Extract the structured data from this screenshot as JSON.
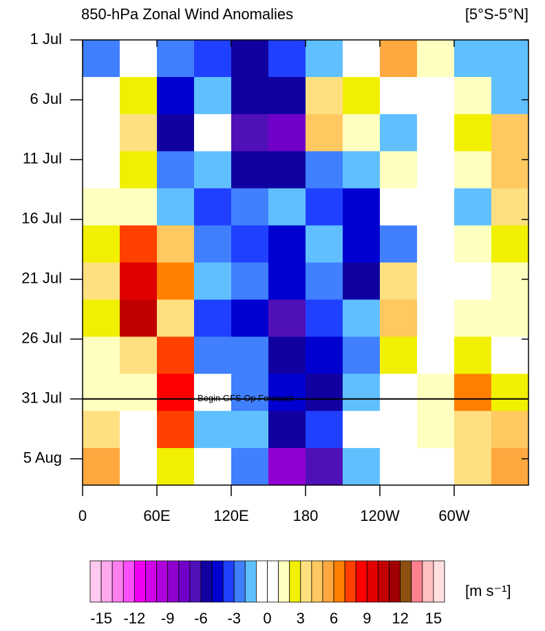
{
  "chart_data": {
    "type": "heatmap",
    "title": "850-hPa Zonal Wind Anomalies",
    "subtitle": "[5°S-5°N]",
    "xlim": [
      0,
      360
    ],
    "xticks": [
      0,
      {
        "value": 60,
        "label": "60E"
      },
      {
        "value": 120,
        "label": "120E"
      },
      180,
      {
        "value": 240,
        "label": "120W"
      },
      {
        "value": 300,
        "label": "60W"
      }
    ],
    "ylim": [
      0,
      37.2
    ],
    "yticks": [
      {
        "value": 0,
        "label": "1 Jul"
      },
      {
        "value": 5,
        "label": "6 Jul"
      },
      {
        "value": 10,
        "label": "11 Jul"
      },
      {
        "value": 15,
        "label": "16 Jul"
      },
      {
        "value": 20,
        "label": "21 Jul"
      },
      {
        "value": 25,
        "label": "26 Jul"
      },
      {
        "value": 30,
        "label": "31 Jul"
      },
      {
        "value": 35,
        "label": "5 Aug"
      }
    ],
    "x": [
      15,
      45,
      75,
      105,
      135,
      165,
      195,
      225,
      255,
      285,
      315,
      345
    ],
    "y": [
      1.55,
      4.65,
      7.75,
      10.85,
      13.95,
      17.05,
      20.15,
      23.25,
      26.35,
      29.45,
      32.55,
      35.65
    ],
    "values": [
      [
        -3,
        -1,
        -3,
        -4,
        -6,
        -4,
        -2,
        -1,
        5,
        1,
        -2,
        -2
      ],
      [
        -1,
        2,
        -5,
        -2,
        -6,
        -6,
        3,
        2,
        -1,
        -1,
        1,
        -2
      ],
      [
        -1,
        3,
        -6,
        -1,
        -7,
        -8,
        4,
        1,
        -2,
        0,
        2,
        4
      ],
      [
        0,
        2,
        -3,
        -2,
        -6,
        -6,
        -3,
        -2,
        1,
        -1,
        1,
        4
      ],
      [
        1,
        1,
        -2,
        -4,
        -3,
        -2,
        -4,
        -5,
        0,
        0,
        -2,
        3
      ],
      [
        2,
        7,
        4,
        -3,
        -4,
        -5,
        -2,
        -5,
        -3,
        -1,
        1,
        2
      ],
      [
        3,
        9,
        6,
        -2,
        -3,
        -5,
        -3,
        -6,
        3,
        0,
        -1,
        1
      ],
      [
        2,
        10,
        3,
        -4,
        -5,
        -7,
        -4,
        -2,
        4,
        0,
        1,
        1
      ],
      [
        1,
        3,
        7,
        -3,
        -3,
        -6,
        -5,
        -3,
        2,
        0,
        2,
        -1
      ],
      [
        1,
        1,
        8,
        -1,
        -3,
        -5,
        -6,
        -2,
        0,
        1,
        6,
        2
      ],
      [
        3,
        0,
        7,
        -2,
        -2,
        -6,
        -4,
        -1,
        -1,
        1,
        3,
        4
      ],
      [
        5,
        0,
        2,
        -1,
        -3,
        -9,
        -7,
        -2,
        -1,
        0,
        3,
        5
      ]
    ],
    "annotation": {
      "text": "Begin GFS Op Forecast",
      "y": 30
    },
    "colorbar": {
      "range": [
        -16,
        16
      ],
      "ticks": [
        -15,
        -12,
        -9,
        -6,
        -3,
        0,
        3,
        6,
        9,
        12,
        15
      ],
      "colors": [
        "#ffc8ee",
        "#ffa8ee",
        "#ff80f0",
        "#ff50ff",
        "#f000f0",
        "#d000e8",
        "#b000dc",
        "#9000d0",
        "#7000c8",
        "#5010b8",
        "#1000a0",
        "#0000d0",
        "#2040ff",
        "#4080ff",
        "#60c0ff",
        "#ffffff",
        "#ffffff",
        "#ffffc0",
        "#f0f000",
        "#ffe080",
        "#ffc860",
        "#ffa840",
        "#ff8000",
        "#ff4000",
        "#ff0000",
        "#e00000",
        "#c00000",
        "#a00000",
        "#8c5010",
        "#ff8090",
        "#ffc0c0",
        "#ffe0e0"
      ],
      "units": "[m s⁻¹]"
    }
  }
}
